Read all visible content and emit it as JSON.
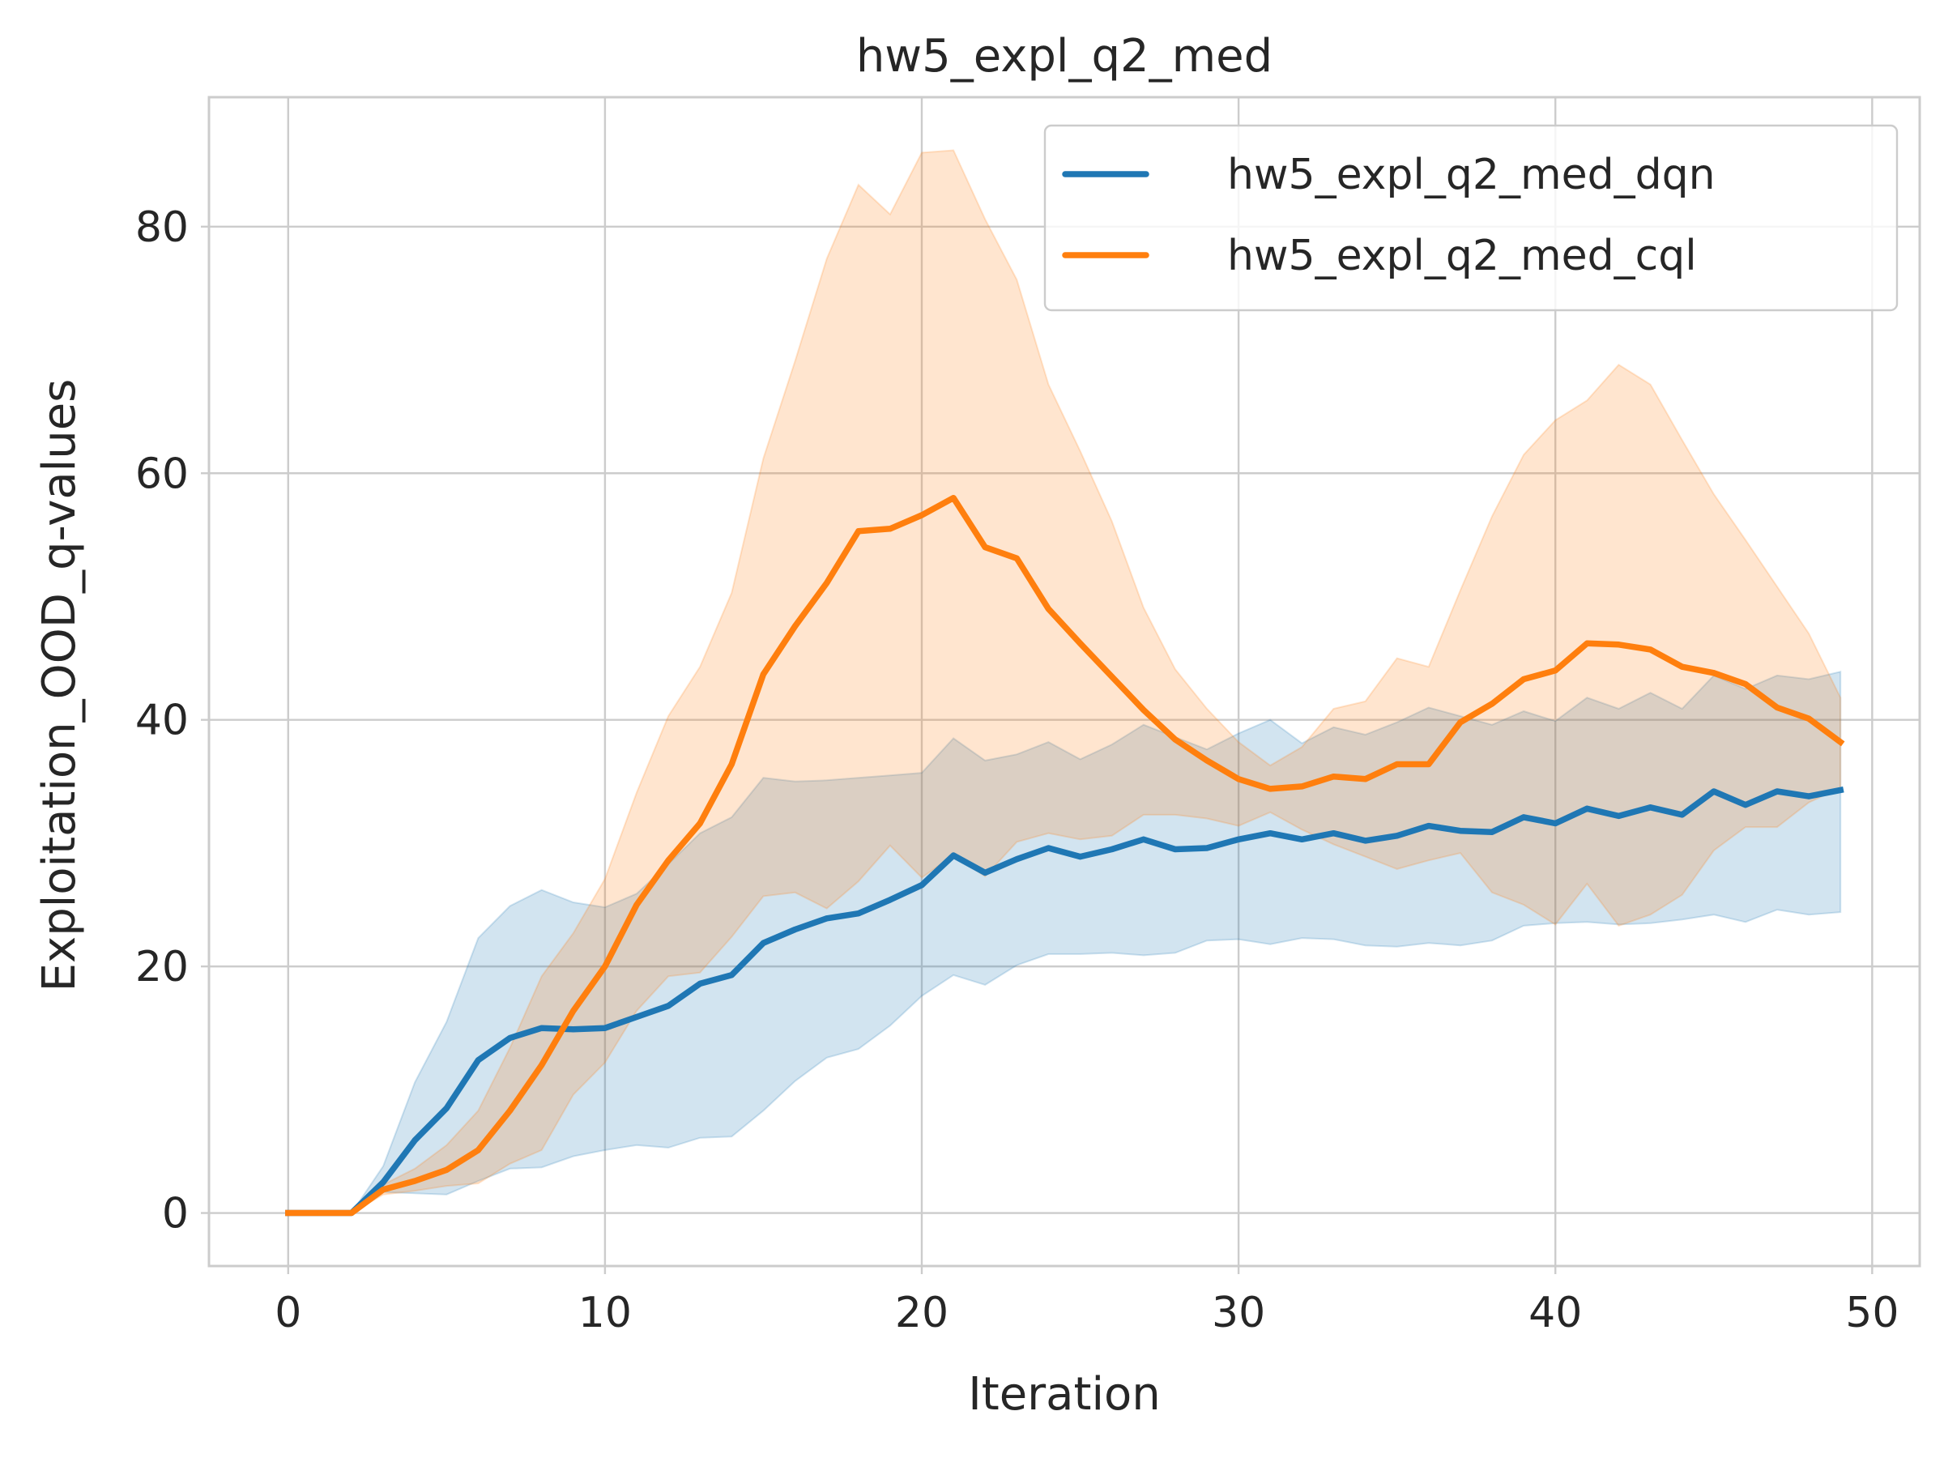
{
  "chart_data": {
    "type": "line",
    "title": "hw5_expl_q2_med",
    "xlabel": "Iteration",
    "ylabel": "Exploitation_OOD_q-values",
    "xlim": [
      -2.5,
      51.5
    ],
    "ylim": [
      -4.3,
      90.5
    ],
    "xticks": [
      0,
      10,
      20,
      30,
      40,
      50
    ],
    "yticks": [
      0,
      20,
      40,
      60,
      80
    ],
    "grid": true,
    "legend_position": "top-right",
    "x": [
      0,
      1,
      2,
      3,
      4,
      5,
      6,
      7,
      8,
      9,
      10,
      11,
      12,
      13,
      14,
      15,
      16,
      17,
      18,
      19,
      20,
      21,
      22,
      23,
      24,
      25,
      26,
      27,
      28,
      29,
      30,
      31,
      32,
      33,
      34,
      35,
      36,
      37,
      38,
      39,
      40,
      41,
      42,
      43,
      44,
      45,
      46,
      47,
      48,
      49
    ],
    "series": [
      {
        "name": "hw5_expl_q2_med_dqn",
        "color": "#1f77b4",
        "values": [
          0,
          0,
          0,
          2.5,
          5.9,
          8.5,
          12.4,
          14.2,
          15.0,
          14.9,
          15.0,
          15.9,
          16.8,
          18.6,
          19.3,
          21.9,
          23.0,
          23.9,
          24.3,
          25.4,
          26.6,
          29.0,
          27.6,
          28.7,
          29.6,
          28.9,
          29.5,
          30.3,
          29.5,
          29.6,
          30.3,
          30.8,
          30.3,
          30.8,
          30.2,
          30.6,
          31.4,
          31.0,
          30.9,
          32.1,
          31.6,
          32.8,
          32.2,
          32.9,
          32.3,
          34.2,
          33.1,
          34.2,
          33.8,
          34.3
        ],
        "upper": [
          0,
          0,
          0,
          3.8,
          10.6,
          15.5,
          22.3,
          24.9,
          26.2,
          25.2,
          24.8,
          25.9,
          28.3,
          30.8,
          32.1,
          35.3,
          35.0,
          35.1,
          35.3,
          35.5,
          35.7,
          38.5,
          36.7,
          37.2,
          38.2,
          36.8,
          38.0,
          39.6,
          38.6,
          37.6,
          38.9,
          40.0,
          38.1,
          39.4,
          38.8,
          39.8,
          41.0,
          40.3,
          39.6,
          40.7,
          39.9,
          41.8,
          40.9,
          42.2,
          40.9,
          43.6,
          42.5,
          43.6,
          43.3,
          43.9
        ],
        "lower": [
          0,
          0,
          0,
          1.7,
          1.6,
          1.5,
          2.6,
          3.6,
          3.7,
          4.6,
          5.1,
          5.5,
          5.3,
          6.1,
          6.2,
          8.3,
          10.7,
          12.6,
          13.3,
          15.2,
          17.6,
          19.3,
          18.5,
          20.1,
          21.0,
          21.0,
          21.1,
          20.9,
          21.1,
          22.1,
          22.2,
          21.8,
          22.3,
          22.2,
          21.7,
          21.6,
          21.9,
          21.7,
          22.1,
          23.3,
          23.5,
          23.6,
          23.4,
          23.5,
          23.8,
          24.2,
          23.6,
          24.6,
          24.2,
          24.4
        ]
      },
      {
        "name": "hw5_expl_q2_med_cql",
        "color": "#ff7f0e",
        "values": [
          0,
          0,
          0,
          1.9,
          2.6,
          3.5,
          5.1,
          8.3,
          12.0,
          16.4,
          20.0,
          25.0,
          28.6,
          31.6,
          36.4,
          43.7,
          47.6,
          51.1,
          55.3,
          55.5,
          56.6,
          58.0,
          54.0,
          53.1,
          49.0,
          46.2,
          43.5,
          40.8,
          38.4,
          36.7,
          35.2,
          34.4,
          34.6,
          35.4,
          35.2,
          36.4,
          36.4,
          39.8,
          41.3,
          43.3,
          44.0,
          46.2,
          46.1,
          45.7,
          44.3,
          43.8,
          42.9,
          41.0,
          40.1,
          38.2
        ],
        "upper": [
          0,
          0,
          0,
          2.3,
          3.6,
          5.5,
          8.3,
          13.4,
          19.2,
          22.7,
          27.1,
          34.1,
          40.3,
          44.3,
          50.3,
          61.2,
          69.1,
          77.4,
          83.4,
          81.0,
          86.0,
          86.2,
          80.6,
          75.7,
          67.2,
          61.8,
          56.1,
          49.1,
          44.1,
          40.9,
          38.2,
          36.3,
          37.8,
          40.9,
          41.5,
          45.0,
          44.3,
          50.5,
          56.5,
          61.5,
          64.3,
          65.9,
          68.8,
          67.2,
          62.7,
          58.3,
          54.6,
          50.8,
          47.0,
          41.8
        ],
        "lower": [
          0,
          0,
          0,
          1.5,
          1.8,
          2.2,
          2.4,
          4.0,
          5.1,
          9.6,
          12.2,
          16.4,
          19.2,
          19.5,
          22.4,
          25.7,
          26.0,
          24.7,
          26.9,
          29.8,
          27.2,
          29.0,
          27.3,
          30.1,
          30.8,
          30.3,
          30.6,
          32.3,
          32.3,
          32.0,
          31.4,
          32.5,
          31.1,
          29.9,
          28.9,
          27.9,
          28.6,
          29.2,
          26.0,
          25.0,
          23.4,
          26.7,
          23.3,
          24.2,
          25.8,
          29.4,
          31.3,
          31.3,
          33.3,
          34.5
        ]
      }
    ]
  }
}
